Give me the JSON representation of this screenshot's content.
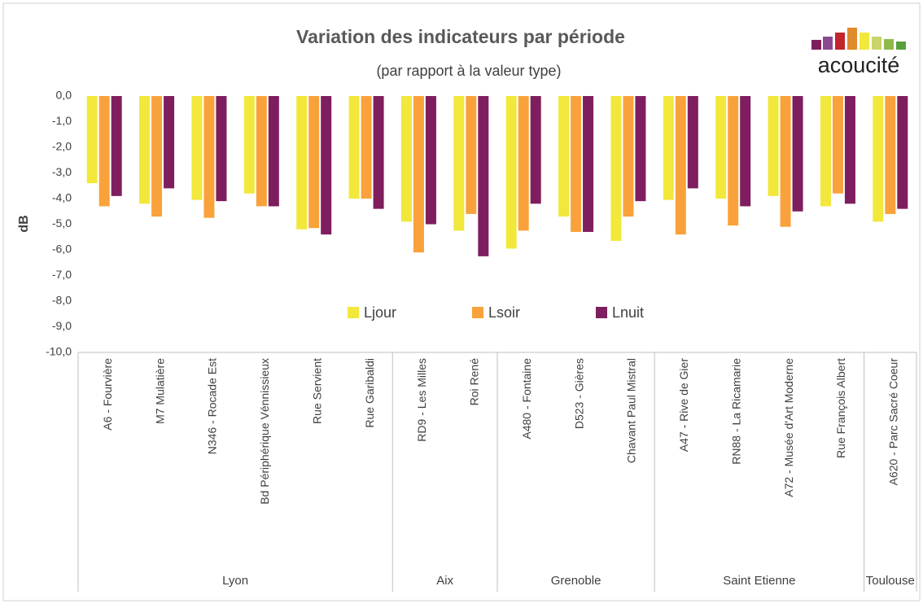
{
  "chart_data": {
    "type": "bar",
    "title": "Variation des indicateurs par période",
    "subtitle": "(par rapport à la valeur type)",
    "logo": "acoucité",
    "y_label": "dB",
    "categories": [
      "A6 - Fourvière",
      "M7 Mulatière",
      "N346 - Rocade Est",
      "Bd Périphérique Vénnissieux",
      "Rue Servient",
      "Rue Garibaldi",
      "RD9 - Les Milles",
      "Roi René",
      "A480 - Fontaine",
      "D523 - Gières",
      "Chavant Paul Mistral",
      "A47 - Rive de Gier",
      "RN88 - La Ricamarie",
      "A72 - Musée d'Art Moderne",
      "Rue François Albert",
      "A620 - Parc Sacré Coeur"
    ],
    "groups": [
      {
        "name": "Lyon",
        "size": 6
      },
      {
        "name": "Aix",
        "size": 2
      },
      {
        "name": "Grenoble",
        "size": 3
      },
      {
        "name": "Saint Etienne",
        "size": 4
      },
      {
        "name": "Toulouse",
        "size": 1
      }
    ],
    "series": [
      {
        "name": "Ljour",
        "color": "#f2e83b",
        "values": [
          -3.4,
          -4.2,
          -4.05,
          -3.8,
          -5.2,
          -4.0,
          -4.9,
          -5.25,
          -5.95,
          -4.7,
          -5.65,
          -4.05,
          -4.0,
          -3.9,
          -4.3,
          -4.9
        ]
      },
      {
        "name": "Lsoir",
        "color": "#f9a23b",
        "values": [
          -4.3,
          -4.7,
          -4.75,
          -4.3,
          -5.15,
          -4.0,
          -6.1,
          -4.6,
          -5.25,
          -5.3,
          -4.7,
          -5.4,
          -5.05,
          -5.1,
          -3.8,
          -4.6
        ]
      },
      {
        "name": "Lnuit",
        "color": "#7e1e5e",
        "values": [
          -3.9,
          -3.6,
          -4.1,
          -4.3,
          -5.4,
          -4.4,
          -5.0,
          -6.25,
          -4.2,
          -5.3,
          -4.1,
          -3.6,
          -4.3,
          -4.5,
          -4.2,
          -4.4
        ]
      }
    ],
    "ylim": [
      -10,
      0
    ],
    "yticks": [
      {
        "value": 0,
        "label": "0,0"
      },
      {
        "value": -1,
        "label": "-1,0"
      },
      {
        "value": -2,
        "label": "-2,0"
      },
      {
        "value": -3,
        "label": "-3,0"
      },
      {
        "value": -4,
        "label": "-4,0"
      },
      {
        "value": -5,
        "label": "-5,0"
      },
      {
        "value": -6,
        "label": "-6,0"
      },
      {
        "value": -7,
        "label": "-7,0"
      },
      {
        "value": -8,
        "label": "-8,0"
      },
      {
        "value": -9,
        "label": "-9,0"
      },
      {
        "value": -10,
        "label": "-10,0"
      }
    ],
    "legend": "center"
  }
}
